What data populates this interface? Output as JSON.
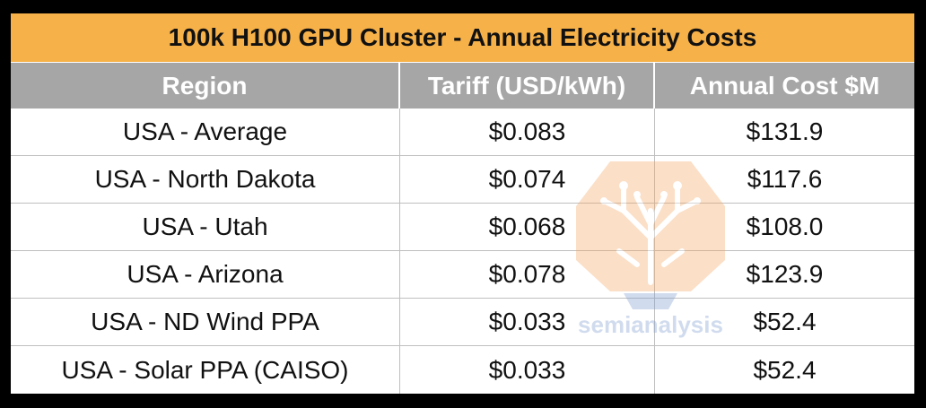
{
  "chart_data": {
    "type": "table",
    "title": "100k H100 GPU Cluster - Annual Electricity Costs",
    "columns": [
      "Region",
      "Tariff (USD/kWh)",
      "Annual Cost $M"
    ],
    "rows": [
      [
        "USA - Average",
        "$0.083",
        "$131.9"
      ],
      [
        "USA - North Dakota",
        "$0.074",
        "$117.6"
      ],
      [
        "USA - Utah",
        "$0.068",
        "$108.0"
      ],
      [
        "USA - Arizona",
        "$0.078",
        "$123.9"
      ],
      [
        "USA - ND Wind PPA",
        "$0.033",
        "$52.4"
      ],
      [
        "USA - Solar PPA (CAISO)",
        "$0.033",
        "$52.4"
      ]
    ]
  },
  "watermark": {
    "text": "semianalysis",
    "icon": "tree-circuit-icon"
  },
  "colors": {
    "title_bg": "#F7B149",
    "header_bg": "#A6A6A6",
    "border": "#BFBFBF",
    "frame": "#000000"
  }
}
